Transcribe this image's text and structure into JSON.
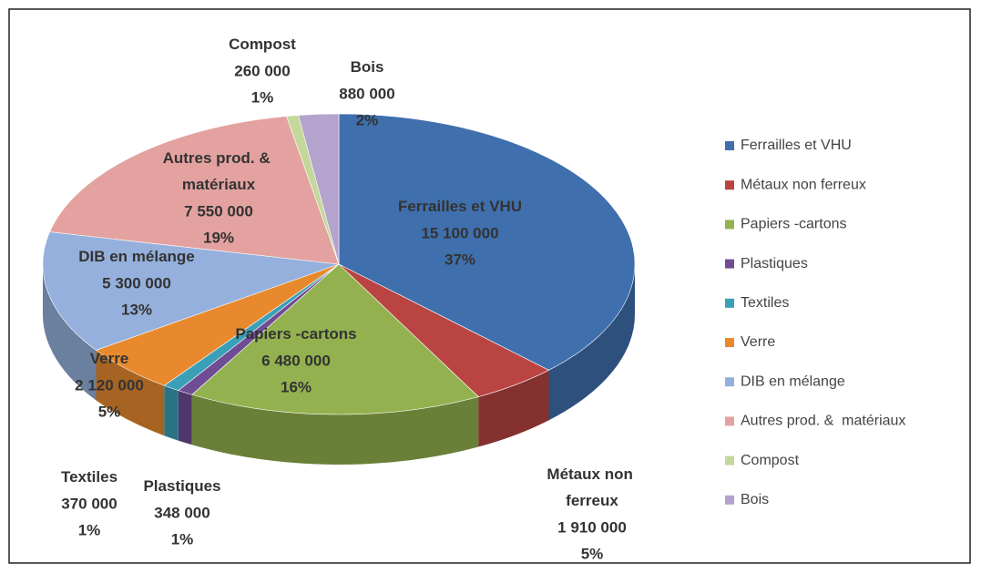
{
  "chart_data": {
    "type": "pie3d",
    "categories": [
      "Ferrailles et VHU",
      "Métaux non ferreux",
      "Papiers -cartons",
      "Plastiques",
      "Textiles",
      "Verre",
      "DIB en mélange",
      "Autres prod. & matériaux",
      "Compost",
      "Bois"
    ],
    "values": [
      15100000,
      1910000,
      6480000,
      348000,
      370000,
      2120000,
      5300000,
      7550000,
      260000,
      880000
    ],
    "value_labels": [
      "15 100 000",
      "1 910 000",
      "6 480 000",
      "348 000",
      "370 000",
      "2 120 000",
      "5 300 000",
      "7 550 000",
      "260 000",
      "880 000"
    ],
    "percent_labels": [
      "37%",
      "5%",
      "16%",
      "1%",
      "1%",
      "5%",
      "13%",
      "19%",
      "1%",
      "2%"
    ],
    "legend_labels": [
      "Ferrailles et VHU",
      "Métaux non ferreux",
      "Papiers -cartons",
      "Plastiques",
      "Textiles",
      "Verre",
      "DIB en mélange",
      "Autres prod. &  matériaux",
      "Compost",
      "Bois"
    ],
    "colors": [
      "#3f6fad",
      "#b94441",
      "#93b24f",
      "#6f4d94",
      "#3aa0b8",
      "#e8892e",
      "#95b0dc",
      "#e3a2a0",
      "#c3d89a",
      "#b3a3cd"
    ],
    "legend": "right"
  }
}
